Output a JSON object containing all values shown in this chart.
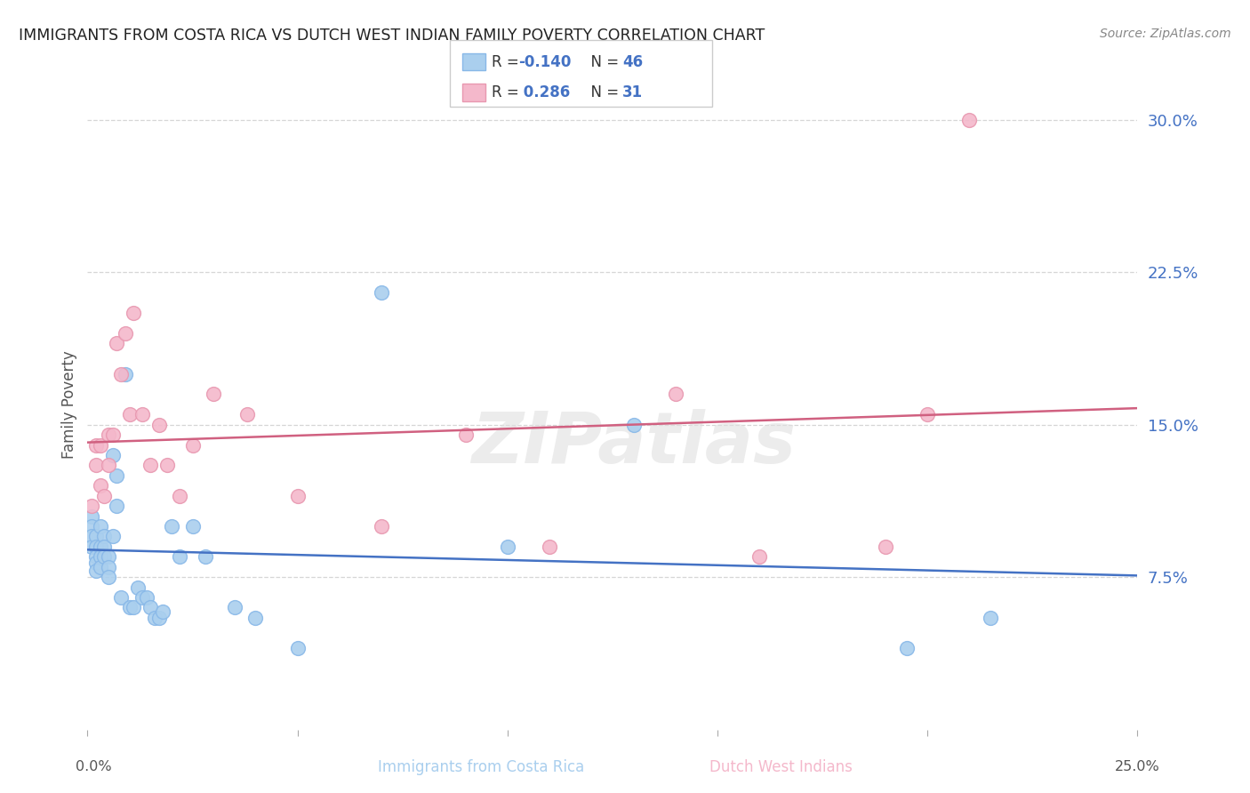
{
  "title": "IMMIGRANTS FROM COSTA RICA VS DUTCH WEST INDIAN FAMILY POVERTY CORRELATION CHART",
  "source": "Source: ZipAtlas.com",
  "ylabel": "Family Poverty",
  "xlim": [
    0.0,
    0.25
  ],
  "ylim": [
    0.0,
    0.32
  ],
  "yticks": [
    0.075,
    0.15,
    0.225,
    0.3
  ],
  "ytick_labels": [
    "7.5%",
    "15.0%",
    "22.5%",
    "30.0%"
  ],
  "grid_color": "#cccccc",
  "background_color": "#ffffff",
  "scatter1_color": "#aacfee",
  "scatter2_color": "#f4b8cb",
  "scatter1_edge": "#88b8e8",
  "scatter2_edge": "#e898b0",
  "line1_color": "#4472c4",
  "line2_color": "#d06080",
  "legend_R1": "-0.140",
  "legend_N1": "46",
  "legend_R2": "0.286",
  "legend_N2": "31",
  "watermark": "ZIPatlas",
  "ytick_color": "#4472c4",
  "title_color": "#222222",
  "source_color": "#888888",
  "costa_rica_x": [
    0.001,
    0.001,
    0.001,
    0.001,
    0.002,
    0.002,
    0.002,
    0.002,
    0.002,
    0.003,
    0.003,
    0.003,
    0.003,
    0.004,
    0.004,
    0.004,
    0.005,
    0.005,
    0.005,
    0.006,
    0.006,
    0.007,
    0.007,
    0.008,
    0.009,
    0.01,
    0.011,
    0.012,
    0.013,
    0.014,
    0.015,
    0.016,
    0.017,
    0.018,
    0.02,
    0.022,
    0.025,
    0.028,
    0.035,
    0.04,
    0.05,
    0.07,
    0.1,
    0.13,
    0.195,
    0.215
  ],
  "costa_rica_y": [
    0.105,
    0.1,
    0.095,
    0.09,
    0.095,
    0.09,
    0.085,
    0.082,
    0.078,
    0.1,
    0.09,
    0.085,
    0.08,
    0.095,
    0.09,
    0.085,
    0.085,
    0.08,
    0.075,
    0.135,
    0.095,
    0.125,
    0.11,
    0.065,
    0.175,
    0.06,
    0.06,
    0.07,
    0.065,
    0.065,
    0.06,
    0.055,
    0.055,
    0.058,
    0.1,
    0.085,
    0.1,
    0.085,
    0.06,
    0.055,
    0.04,
    0.215,
    0.09,
    0.15,
    0.04,
    0.055
  ],
  "dutch_x": [
    0.001,
    0.002,
    0.002,
    0.003,
    0.003,
    0.004,
    0.005,
    0.005,
    0.006,
    0.007,
    0.008,
    0.009,
    0.01,
    0.011,
    0.013,
    0.015,
    0.017,
    0.019,
    0.022,
    0.025,
    0.03,
    0.038,
    0.05,
    0.07,
    0.09,
    0.11,
    0.14,
    0.16,
    0.19,
    0.21,
    0.2
  ],
  "dutch_y": [
    0.11,
    0.13,
    0.14,
    0.14,
    0.12,
    0.115,
    0.145,
    0.13,
    0.145,
    0.19,
    0.175,
    0.195,
    0.155,
    0.205,
    0.155,
    0.13,
    0.15,
    0.13,
    0.115,
    0.14,
    0.165,
    0.155,
    0.115,
    0.1,
    0.145,
    0.09,
    0.165,
    0.085,
    0.09,
    0.3,
    0.155
  ]
}
